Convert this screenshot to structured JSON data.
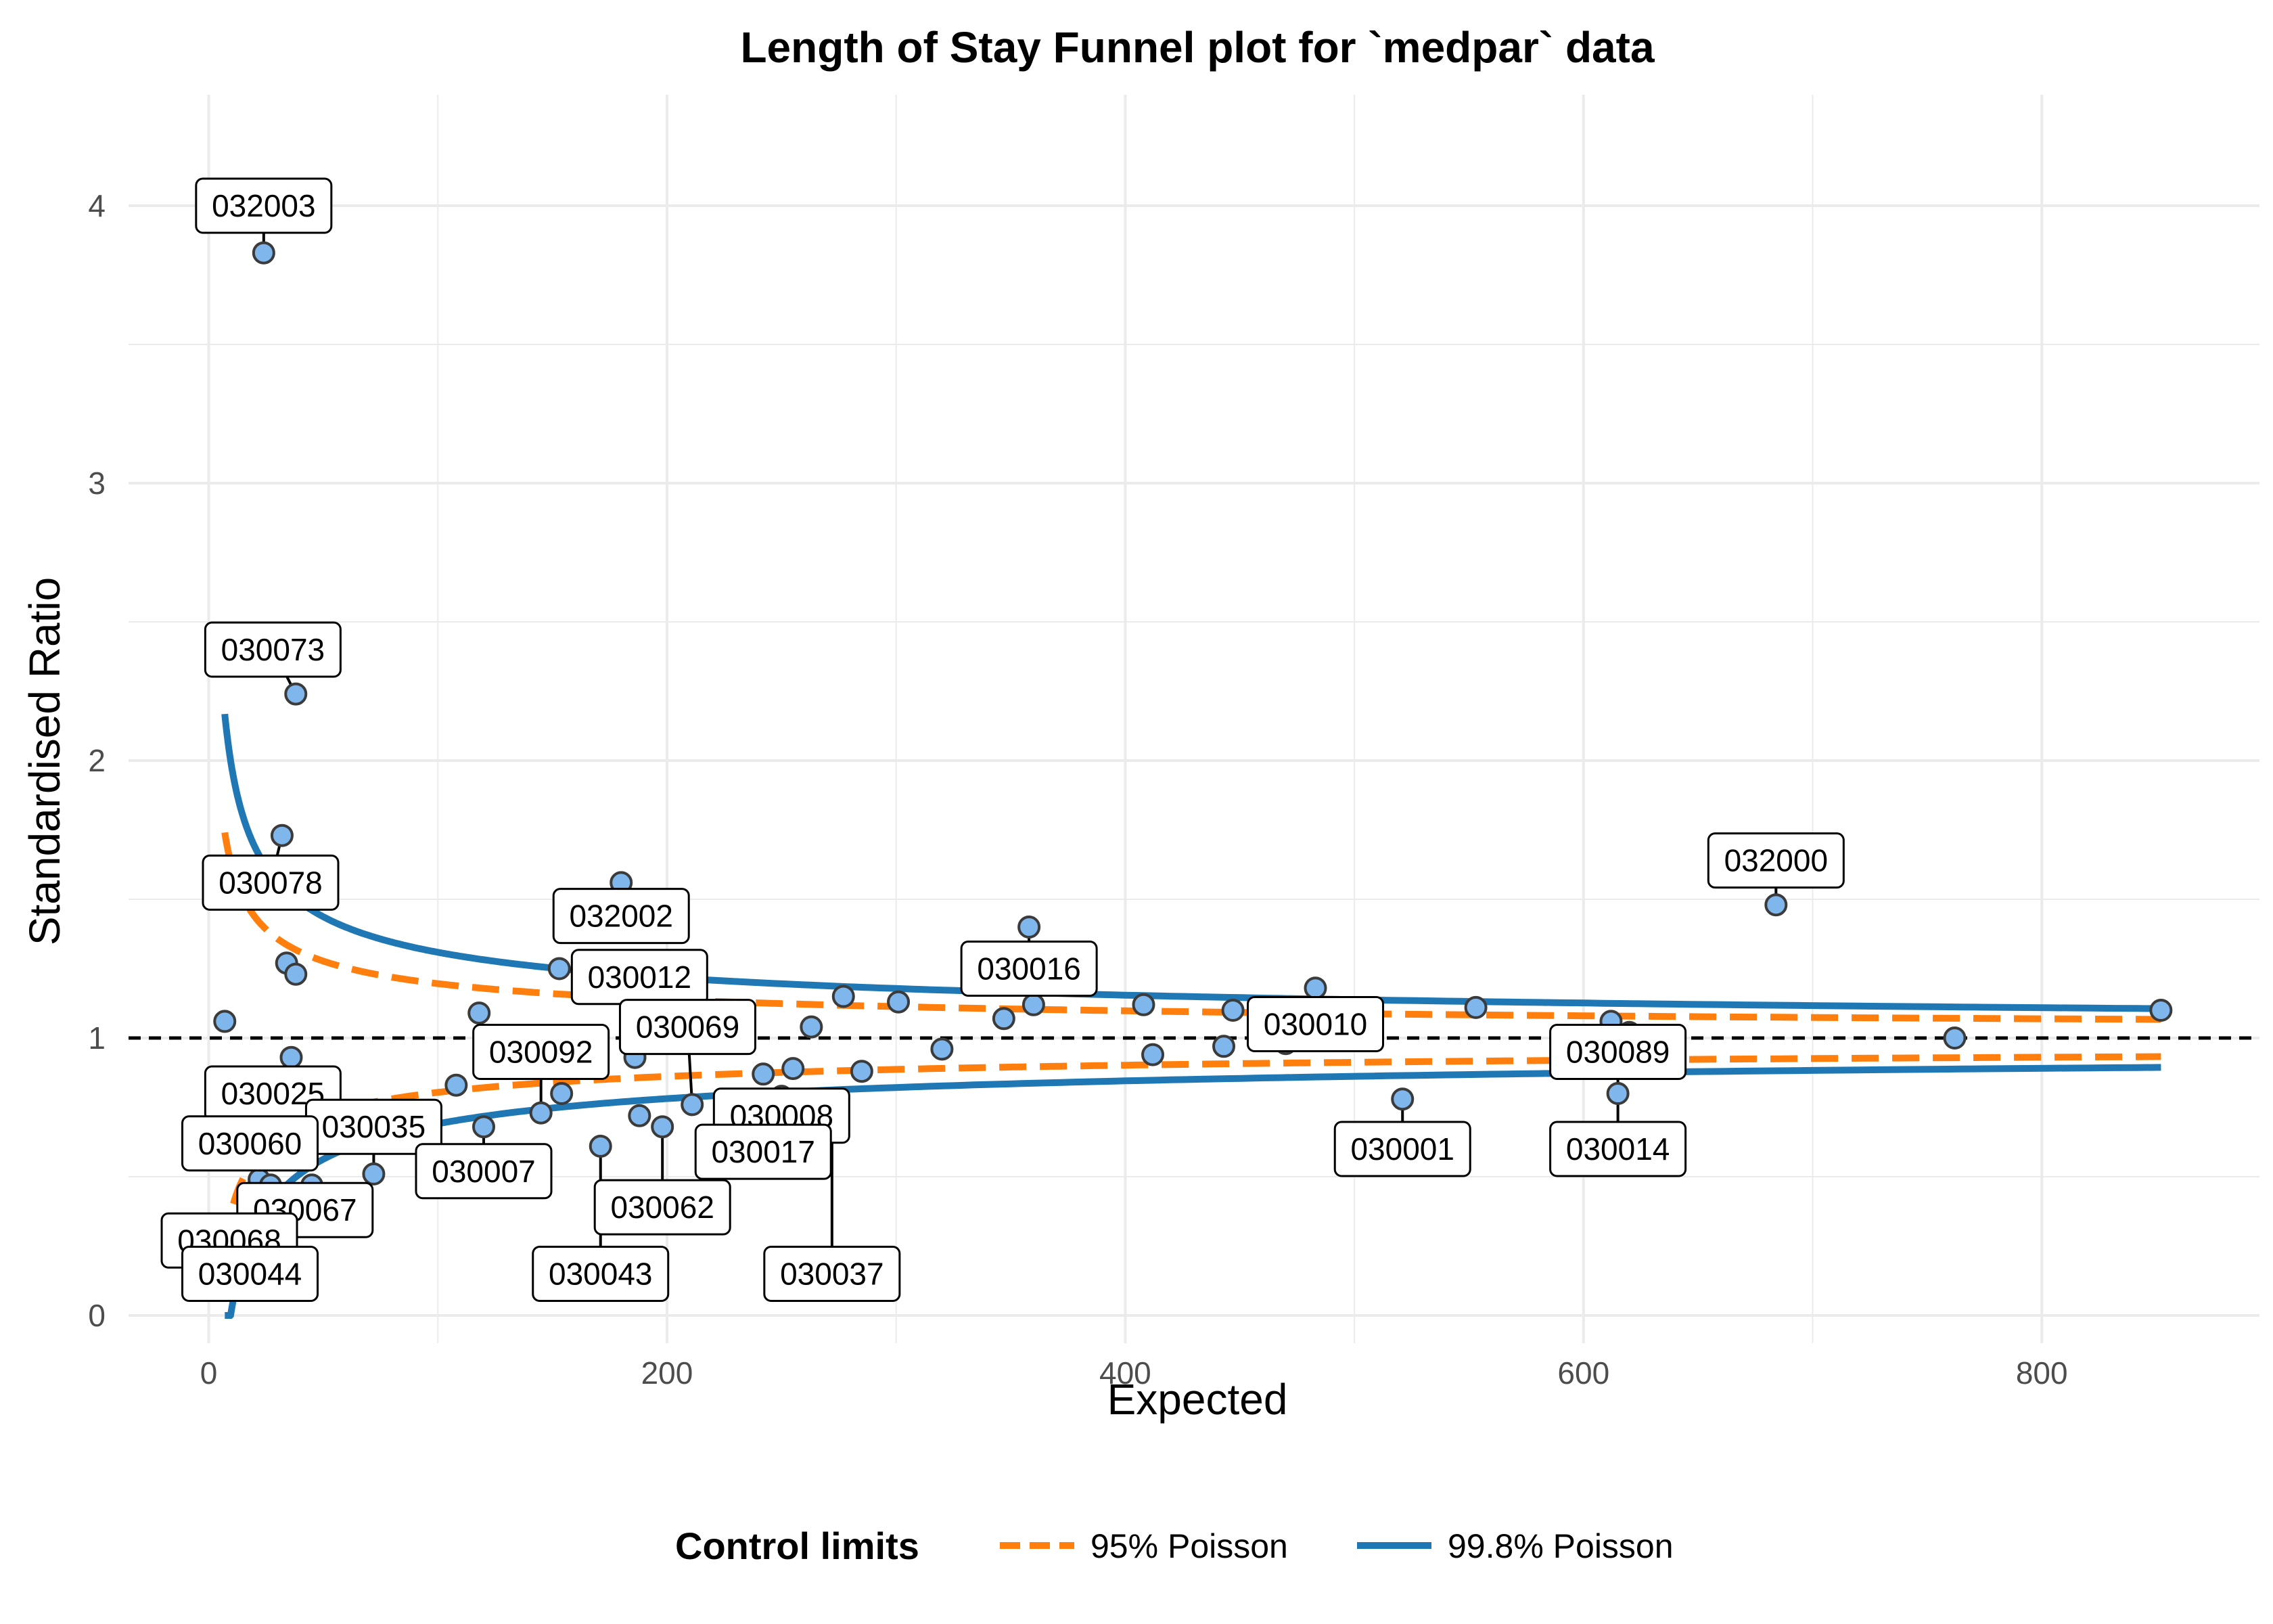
{
  "chart_data": {
    "type": "scatter",
    "title": "Length of Stay Funnel plot for `medpar` data",
    "xlabel": "Expected",
    "ylabel": "Standardised Ratio",
    "xlim": [
      -35,
      895
    ],
    "ylim": [
      -0.1,
      4.4
    ],
    "x_ticks": [
      0,
      200,
      400,
      600,
      800
    ],
    "x_tick_labels": [
      "0",
      "200",
      "400",
      "600",
      "800"
    ],
    "y_ticks": [
      0,
      1,
      2,
      3,
      4
    ],
    "y_tick_labels": [
      "0",
      "1",
      "2",
      "3",
      "4"
    ],
    "grid": true,
    "target_line": 1,
    "colors": {
      "point_fill": "#7fb6ec",
      "point_stroke": "#3b3b3b",
      "limit_95": "#ff7f0e",
      "limit_998": "#1f77b4",
      "target": "#000000",
      "grid": "#ebebeb"
    },
    "legend": {
      "title": "Control limits",
      "position": "bottom",
      "items": [
        {
          "name": "95% Poisson",
          "color": "#ff7f0e",
          "dash": "dashed"
        },
        {
          "name": "99.8% Poisson",
          "color": "#1f77b4",
          "dash": "solid"
        }
      ]
    },
    "series": [
      {
        "name": "95% Poisson",
        "kind": "limits",
        "z": 1.96
      },
      {
        "name": "99.8% Poisson",
        "kind": "limits",
        "z": 3.09
      }
    ],
    "limit_x_range": [
      7,
      852
    ],
    "points": [
      {
        "x": 24,
        "y": 3.83
      },
      {
        "x": 38,
        "y": 2.24
      },
      {
        "x": 32,
        "y": 1.73
      },
      {
        "x": 7,
        "y": 1.06
      },
      {
        "x": 34,
        "y": 1.27
      },
      {
        "x": 38,
        "y": 1.23
      },
      {
        "x": 36,
        "y": 0.93
      },
      {
        "x": 22,
        "y": 0.49
      },
      {
        "x": 27,
        "y": 0.47
      },
      {
        "x": 45,
        "y": 0.47
      },
      {
        "x": 72,
        "y": 0.51
      },
      {
        "x": 108,
        "y": 0.83
      },
      {
        "x": 118,
        "y": 1.09
      },
      {
        "x": 120,
        "y": 0.68
      },
      {
        "x": 145,
        "y": 0.73
      },
      {
        "x": 153,
        "y": 1.25
      },
      {
        "x": 154,
        "y": 0.8
      },
      {
        "x": 171,
        "y": 0.61
      },
      {
        "x": 180,
        "y": 1.56
      },
      {
        "x": 186,
        "y": 0.93
      },
      {
        "x": 188,
        "y": 0.72
      },
      {
        "x": 198,
        "y": 0.68
      },
      {
        "x": 211,
        "y": 0.76
      },
      {
        "x": 242,
        "y": 0.87
      },
      {
        "x": 250,
        "y": 0.79
      },
      {
        "x": 255,
        "y": 0.89
      },
      {
        "x": 263,
        "y": 1.04
      },
      {
        "x": 277,
        "y": 1.15
      },
      {
        "x": 285,
        "y": 0.88
      },
      {
        "x": 301,
        "y": 1.13
      },
      {
        "x": 320,
        "y": 0.96
      },
      {
        "x": 347,
        "y": 1.07
      },
      {
        "x": 358,
        "y": 1.4
      },
      {
        "x": 360,
        "y": 1.12
      },
      {
        "x": 408,
        "y": 1.12
      },
      {
        "x": 412,
        "y": 0.94
      },
      {
        "x": 443,
        "y": 0.97
      },
      {
        "x": 447,
        "y": 1.1
      },
      {
        "x": 470,
        "y": 0.98
      },
      {
        "x": 483,
        "y": 1.18
      },
      {
        "x": 521,
        "y": 0.78
      },
      {
        "x": 553,
        "y": 1.11
      },
      {
        "x": 612,
        "y": 1.06
      },
      {
        "x": 615,
        "y": 0.8
      },
      {
        "x": 620,
        "y": 1.02
      },
      {
        "x": 684,
        "y": 1.48
      },
      {
        "x": 762,
        "y": 1.0
      },
      {
        "x": 852,
        "y": 1.1
      }
    ],
    "annotations": [
      {
        "text": "032003",
        "x": 24,
        "y": 3.83,
        "lx": 24,
        "ly": 4.0
      },
      {
        "text": "030073",
        "x": 38,
        "y": 2.24,
        "lx": 28,
        "ly": 2.4
      },
      {
        "text": "030078",
        "x": 32,
        "y": 1.73,
        "lx": 27,
        "ly": 1.56
      },
      {
        "text": "032002",
        "x": 180,
        "y": 1.56,
        "lx": 180,
        "ly": 1.44
      },
      {
        "text": "030012",
        "x": 153,
        "y": 1.25,
        "lx": 188,
        "ly": 1.22
      },
      {
        "text": "030069",
        "x": 211,
        "y": 0.76,
        "lx": 209,
        "ly": 1.04
      },
      {
        "text": "030092",
        "x": 145,
        "y": 0.73,
        "lx": 145,
        "ly": 0.95
      },
      {
        "text": "030016",
        "x": 358,
        "y": 1.4,
        "lx": 358,
        "ly": 1.25
      },
      {
        "text": "030010",
        "x": 483,
        "y": 1.18,
        "lx": 483,
        "ly": 1.05
      },
      {
        "text": "032000",
        "x": 684,
        "y": 1.48,
        "lx": 684,
        "ly": 1.64
      },
      {
        "text": "030089",
        "x": 615,
        "y": 0.8,
        "lx": 615,
        "ly": 0.95
      },
      {
        "text": "030014",
        "x": 615,
        "y": 0.8,
        "lx": 615,
        "ly": 0.6
      },
      {
        "text": "030001",
        "x": 521,
        "y": 0.78,
        "lx": 521,
        "ly": 0.6
      },
      {
        "text": "030025",
        "x": 36,
        "y": 0.93,
        "lx": 28,
        "ly": 0.8
      },
      {
        "text": "030035",
        "x": 72,
        "y": 0.51,
        "lx": 72,
        "ly": 0.68
      },
      {
        "text": "030060",
        "x": 22,
        "y": 0.49,
        "lx": 18,
        "ly": 0.62
      },
      {
        "text": "030007",
        "x": 120,
        "y": 0.68,
        "lx": 120,
        "ly": 0.52
      },
      {
        "text": "030008",
        "x": 250,
        "y": 0.79,
        "lx": 250,
        "ly": 0.72
      },
      {
        "text": "030017",
        "x": 246,
        "y": 0.78,
        "lx": 242,
        "ly": 0.59
      },
      {
        "text": "030062",
        "x": 198,
        "y": 0.68,
        "lx": 198,
        "ly": 0.39
      },
      {
        "text": "030037",
        "x": 272,
        "y": 0.62,
        "lx": 272,
        "ly": 0.15
      },
      {
        "text": "030043",
        "x": 171,
        "y": 0.61,
        "lx": 171,
        "ly": 0.15
      },
      {
        "text": "030067",
        "x": 45,
        "y": 0.47,
        "lx": 42,
        "ly": 0.38
      },
      {
        "text": "030068",
        "x": 22,
        "y": 0.45,
        "lx": 9,
        "ly": 0.27
      },
      {
        "text": "030044",
        "x": 22,
        "y": 0.45,
        "lx": 18,
        "ly": 0.15
      }
    ]
  }
}
